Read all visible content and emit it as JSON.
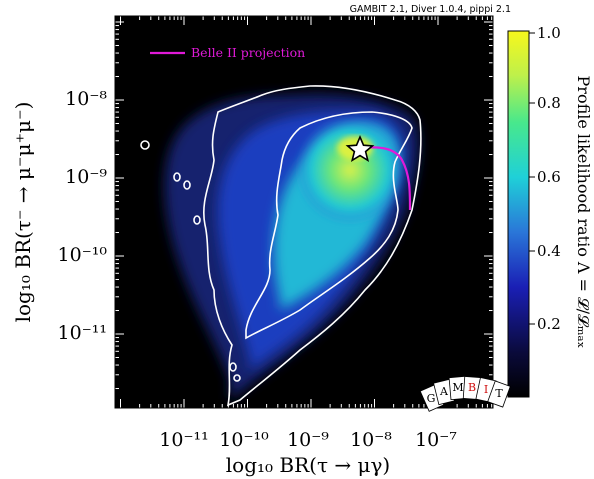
{
  "credit": "GAMBIT 2.1, Diver 1.0.4, pippi 2.1",
  "chart_data": {
    "type": "heatmap",
    "xlabel": "log₁₀ BR(τ → μγ)",
    "ylabel": "log₁₀ BR(τ⁻ → μ⁻μ⁺μ⁻)",
    "xscale": "log",
    "yscale": "log",
    "xlim": [
      2e-12,
      3e-07
    ],
    "ylim": [
      1e-12,
      2e-07
    ],
    "xticks": [
      "10⁻¹¹",
      "10⁻¹⁰",
      "10⁻⁹",
      "10⁻⁸",
      "10⁻⁷"
    ],
    "yticks": [
      "10⁻¹¹",
      "10⁻¹⁰",
      "10⁻⁹",
      "10⁻⁸"
    ],
    "colorbar": {
      "label": "Profile likelihood ratio Λ = 𝓛/𝓛ₘₐₓ",
      "range": [
        0,
        1
      ],
      "ticks": [
        "0.2",
        "0.4",
        "0.6",
        "0.8",
        "1.0"
      ],
      "colormap": "plasma-like (black-blue-cyan-green-yellow)"
    },
    "best_fit": {
      "x": 7.5e-09,
      "y": 2.2e-09,
      "marker": "star"
    },
    "projection": {
      "name": "Belle II projection",
      "color": "#e01ad8",
      "points": [
        [
          7.5e-09,
          2.2e-09
        ],
        [
          2.2e-08,
          2e-09
        ],
        [
          3.2e-08,
          1.4e-09
        ],
        [
          4e-08,
          7e-10
        ],
        [
          4.3e-08,
          4e-10
        ]
      ]
    },
    "legend_placement": "top-left",
    "contours": [
      "68% CL",
      "95% CL"
    ],
    "contour_color": "#ffffff"
  },
  "legend": {
    "label": "Belle II projection"
  },
  "colors": {
    "background": "#000000",
    "contour": "#ffffff",
    "projection": "#e01ad8"
  },
  "logo": {
    "letters": [
      "G",
      "A",
      "M",
      "B",
      "I",
      "T"
    ]
  }
}
